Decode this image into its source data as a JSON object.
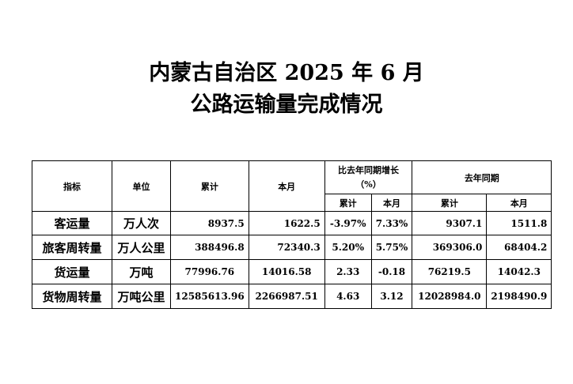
{
  "title": {
    "line1": "内蒙古自治区 2025 年 6 月",
    "line2": "公路运输量完成情况"
  },
  "table": {
    "headers": {
      "indicator": "指标",
      "unit": "单位",
      "cumulative": "累计",
      "month": "本月",
      "growth": "比去年同期增长（%）",
      "growth_cum": "累计",
      "growth_month": "本月",
      "last_year": "去年同期",
      "ly_cum": "累计",
      "ly_month": "本月"
    },
    "rows": [
      {
        "indicator": "客运量",
        "unit": "万人次",
        "cumulative": "8937.5",
        "month": "1622.5",
        "growth_cum": "-3.97%",
        "growth_month": "7.33%",
        "ly_cum": "9307.1",
        "ly_month": "1511.8"
      },
      {
        "indicator": "旅客周转量",
        "unit": "万人公里",
        "cumulative": "388496.8",
        "month": "72340.3",
        "growth_cum": "5.20%",
        "growth_month": "5.75%",
        "ly_cum": "369306.0",
        "ly_month": "68404.2"
      },
      {
        "indicator": "货运量",
        "unit": "万吨",
        "cumulative": "77996.76",
        "month": "14016.58",
        "growth_cum": "2.33",
        "growth_month": "-0.18",
        "ly_cum": "76219.5",
        "ly_month": "14042.3"
      },
      {
        "indicator": "货物周转量",
        "unit": "万吨公里",
        "cumulative": "12585613.96",
        "month": "2266987.51",
        "growth_cum": "4.63",
        "growth_month": "3.12",
        "ly_cum": "12028984.0",
        "ly_month": "2198490.9"
      }
    ]
  }
}
